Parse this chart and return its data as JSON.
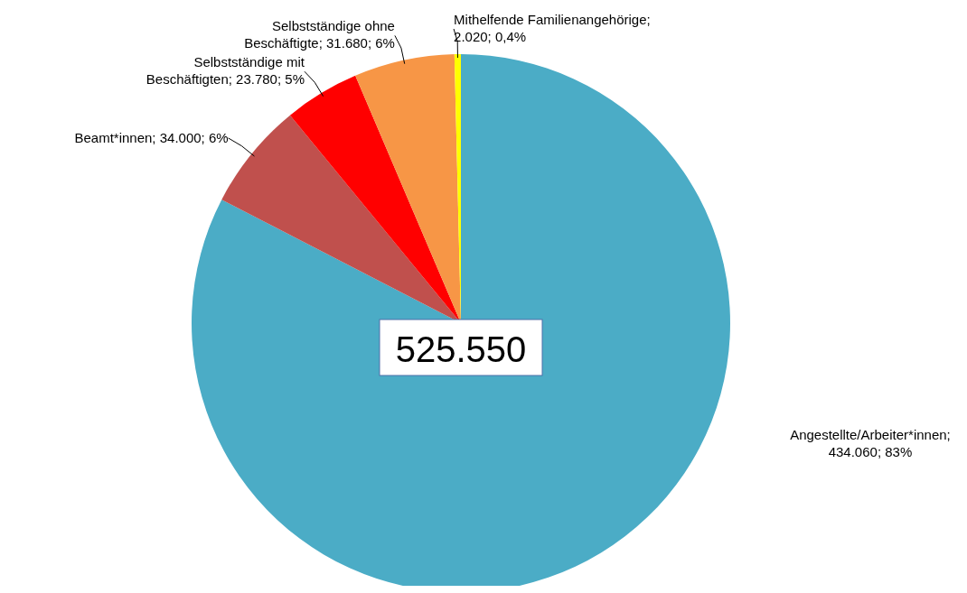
{
  "chart_data": {
    "type": "pie",
    "categories": [
      "Angestellte/Arbeiter*innen",
      "Beamt*innen",
      "Selbstständige mit Beschäftigten",
      "Selbstständige ohne Beschäftigte",
      "Mithelfende Familienangehörige"
    ],
    "values": [
      434060,
      34000,
      23780,
      31680,
      2020
    ],
    "colors": [
      "#4bacc6",
      "#c0504d",
      "#ff0000",
      "#f79646",
      "#ffff00"
    ],
    "value_labels": [
      "; 434.060; 83%",
      "; 34.000; 6%",
      "; 23.780; 5%",
      "; 31.680; 6%",
      "; 2.020; 0,4%"
    ],
    "annotations": [
      "525.550"
    ]
  }
}
